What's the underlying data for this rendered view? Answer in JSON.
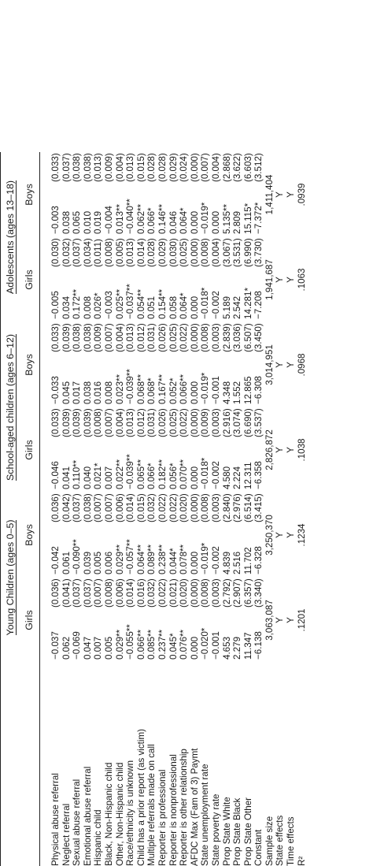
{
  "groups": [
    "Young Children (ages 0–5)",
    "School-aged children (ages 6–12)",
    "Adolescents (ages 13–18)"
  ],
  "subgroups": [
    "Girls",
    "Boys",
    "Girls",
    "Boys",
    "Girls",
    "Boys"
  ],
  "rows": [
    {
      "label": "Physical abuse referral",
      "cells": [
        [
          "−0.037",
          "(0.036)"
        ],
        [
          "−0.042",
          "(0.036)"
        ],
        [
          "−0.046",
          "(0.033)"
        ],
        [
          "−0.033",
          "(0.033)"
        ],
        [
          "−0.005",
          "(0.030)"
        ],
        [
          "−0.003",
          "(0.033)"
        ]
      ]
    },
    {
      "label": "Neglect referral",
      "cells": [
        [
          "0.062",
          "(0.041)"
        ],
        [
          "0.061",
          "(0.042)"
        ],
        [
          "0.041",
          "(0.039)"
        ],
        [
          "0.045",
          "(0.039)"
        ],
        [
          "0.034",
          "(0.032)"
        ],
        [
          "0.038",
          "(0.037)"
        ]
      ]
    },
    {
      "label": "Sexual abuse referral",
      "cells": [
        [
          "−0.069",
          "(0.037)"
        ],
        [
          "−0.090**",
          "(0.037)"
        ],
        [
          "0.110**",
          "(0.039)"
        ],
        [
          "0.017",
          "(0.038)"
        ],
        [
          "0.172**",
          "(0.037)"
        ],
        [
          "0.065",
          "(0.038)"
        ]
      ]
    },
    {
      "label": "Emotional abuse referral",
      "cells": [
        [
          "0.047",
          "(0.037)"
        ],
        [
          "0.039",
          "(0.038)"
        ],
        [
          "0.040",
          "(0.039)"
        ],
        [
          "0.038",
          "(0.038)"
        ],
        [
          "0.008",
          "(0.034)"
        ],
        [
          "0.010",
          "(0.038)"
        ]
      ]
    },
    {
      "label": "Hispanic child",
      "cells": [
        [
          "0.007",
          "(0.007)"
        ],
        [
          "0.005",
          "(0.007)"
        ],
        [
          "0.021*",
          "(0.008)"
        ],
        [
          "0.016",
          "(0.009)"
        ],
        [
          "0.026*",
          "(0.011)"
        ],
        [
          "0.019",
          "(0.013)"
        ]
      ]
    },
    {
      "label": "Black, Non-Hispanic child",
      "cells": [
        [
          "0.005",
          "(0.008)"
        ],
        [
          "0.006",
          "(0.007)"
        ],
        [
          "0.007",
          "(0.007)"
        ],
        [
          "0.008",
          "(0.007)"
        ],
        [
          "−0.003",
          "(0.008)"
        ],
        [
          "−0.004",
          "(0.009)"
        ]
      ]
    },
    {
      "label": "Other, Non-Hispanic child",
      "cells": [
        [
          "0.029**",
          "(0.006)"
        ],
        [
          "0.029**",
          "(0.006)"
        ],
        [
          "0.022**",
          "(0.004)"
        ],
        [
          "0.023**",
          "(0.004)"
        ],
        [
          "0.025**",
          "(0.005)"
        ],
        [
          "0.013**",
          "(0.004)"
        ]
      ]
    },
    {
      "label": "Race/ethnicity is unknown",
      "cells": [
        [
          "−0.055**",
          "(0.014)"
        ],
        [
          "−0.057**",
          "(0.014)"
        ],
        [
          "−0.039**",
          "(0.013)"
        ],
        [
          "−0.039**",
          "(0.013)"
        ],
        [
          "−0.037**",
          "(0.013)"
        ],
        [
          "−0.040**",
          "(0.013)"
        ]
      ]
    },
    {
      "label": "Child has a prior report (as victim)",
      "cells": [
        [
          "0.066**",
          "(0.016)"
        ],
        [
          "0.064**",
          "(0.015)"
        ],
        [
          "0.065**",
          "(0.012)"
        ],
        [
          "0.068**",
          "(0.012)"
        ],
        [
          "0.054**",
          "(0.014)"
        ],
        [
          "0.062**",
          "(0.015)"
        ]
      ]
    },
    {
      "label": "Multiple referrals made on call",
      "cells": [
        [
          "0.085**",
          "(0.032)"
        ],
        [
          "0.089**",
          "(0.032)"
        ],
        [
          "0.066*",
          "(0.031)"
        ],
        [
          "0.068*",
          "(0.031)"
        ],
        [
          "0.051",
          "(0.028)"
        ],
        [
          "0.066*",
          "(0.028)"
        ]
      ]
    },
    {
      "label": "Reporter is professional",
      "cells": [
        [
          "0.237**",
          "(0.022)"
        ],
        [
          "0.238**",
          "(0.022)"
        ],
        [
          "0.182**",
          "(0.026)"
        ],
        [
          "0.167**",
          "(0.026)"
        ],
        [
          "0.154**",
          "(0.029)"
        ],
        [
          "0.146**",
          "(0.028)"
        ]
      ]
    },
    {
      "label": "Reporter is nonprofessional",
      "cells": [
        [
          "0.045*",
          "(0.021)"
        ],
        [
          "0.044*",
          "(0.022)"
        ],
        [
          "0.056*",
          "(0.025)"
        ],
        [
          "0.052*",
          "(0.025)"
        ],
        [
          "0.058",
          "(0.030)"
        ],
        [
          "0.046",
          "(0.029)"
        ]
      ]
    },
    {
      "label": "Reporter is other relationship",
      "cells": [
        [
          "0.076**",
          "(0.020)"
        ],
        [
          "0.078**",
          "(0.020)"
        ],
        [
          "0.070**",
          "(0.022)"
        ],
        [
          "0.066**",
          "(0.022)"
        ],
        [
          "0.064*",
          "(0.025)"
        ],
        [
          "0.064*",
          "(0.024)"
        ]
      ]
    },
    {
      "label": "AFDC Max (Fam of 3) Paymt",
      "cells": [
        [
          "0.000",
          "(0.000)"
        ],
        [
          "0.000",
          "(0.000)"
        ],
        [
          "0.000",
          "(0.000)"
        ],
        [
          "0.000",
          "(0.000)"
        ],
        [
          "0.000",
          "(0.000)"
        ],
        [
          "0.000",
          "(0.000)"
        ]
      ]
    },
    {
      "label": "State unemployment rate",
      "cells": [
        [
          "−0.020*",
          "(0.008)"
        ],
        [
          "−0.019*",
          "(0.008)"
        ],
        [
          "−0.018*",
          "(0.009)"
        ],
        [
          "−0.019*",
          "(0.008)"
        ],
        [
          "−0.018*",
          "(0.008)"
        ],
        [
          "−0.019*",
          "(0.007)"
        ]
      ]
    },
    {
      "label": "State poverty rate",
      "cells": [
        [
          "−0.001",
          "(0.003)"
        ],
        [
          "−0.002",
          "(0.003)"
        ],
        [
          "−0.002",
          "(0.003)"
        ],
        [
          "−0.001",
          "(0.003)"
        ],
        [
          "−0.002",
          "(0.004)"
        ],
        [
          "0.000",
          "(0.004)"
        ]
      ]
    },
    {
      "label": "Prop State White",
      "cells": [
        [
          "4.653",
          "(2.792)"
        ],
        [
          "4.839",
          "(2.840)"
        ],
        [
          "4.580",
          "(2.916)"
        ],
        [
          "4.348",
          "(2.839)"
        ],
        [
          "5.189",
          "(3.067)"
        ],
        [
          "5.135**",
          "(2.868)"
        ]
      ]
    },
    {
      "label": "Prop State Black",
      "cells": [
        [
          "2.279",
          "(2.907)"
        ],
        [
          "2.516",
          "(2.976)"
        ],
        [
          "2.224",
          "(3.074)"
        ],
        [
          "1.552",
          "(3.036)"
        ],
        [
          "2.542",
          "(3.531)"
        ],
        [
          "2.809",
          "(3.622)"
        ]
      ]
    },
    {
      "label": "Prop State Other",
      "cells": [
        [
          "11.347",
          "(6.357)"
        ],
        [
          "11.702",
          "(6.514)"
        ],
        [
          "12.311",
          "(6.690)"
        ],
        [
          "12.865",
          "(6.507)"
        ],
        [
          "14.281*",
          "(6.990)"
        ],
        [
          "15.115*",
          "(6.603)"
        ]
      ]
    },
    {
      "label": "Constant",
      "cells": [
        [
          "−6.138",
          "(3.340)"
        ],
        [
          "−6.328",
          "(3.415)"
        ],
        [
          "−6.358",
          "(3.537)"
        ],
        [
          "−6.308",
          "(3.450)"
        ],
        [
          "−7.208",
          "(3.730)"
        ],
        [
          "−7.372*",
          "(3.512)"
        ]
      ]
    }
  ],
  "footer": [
    {
      "label": "Sample size",
      "values": [
        "3,063,087",
        "3,250,370",
        "2,826,872",
        "3,014,951",
        "1,941,687",
        "1,411,404"
      ]
    },
    {
      "label": "State effects",
      "values": [
        "Y",
        "Y",
        "Y",
        "Y",
        "Y",
        "Y"
      ]
    },
    {
      "label": "Time effects",
      "values": [
        "Y",
        "Y",
        "Y",
        "Y",
        "Y",
        "Y"
      ]
    },
    {
      "label": "R²",
      "values": [
        ".1201",
        ".1234",
        ".1038",
        ".0968",
        ".1063",
        ".0939"
      ]
    }
  ]
}
